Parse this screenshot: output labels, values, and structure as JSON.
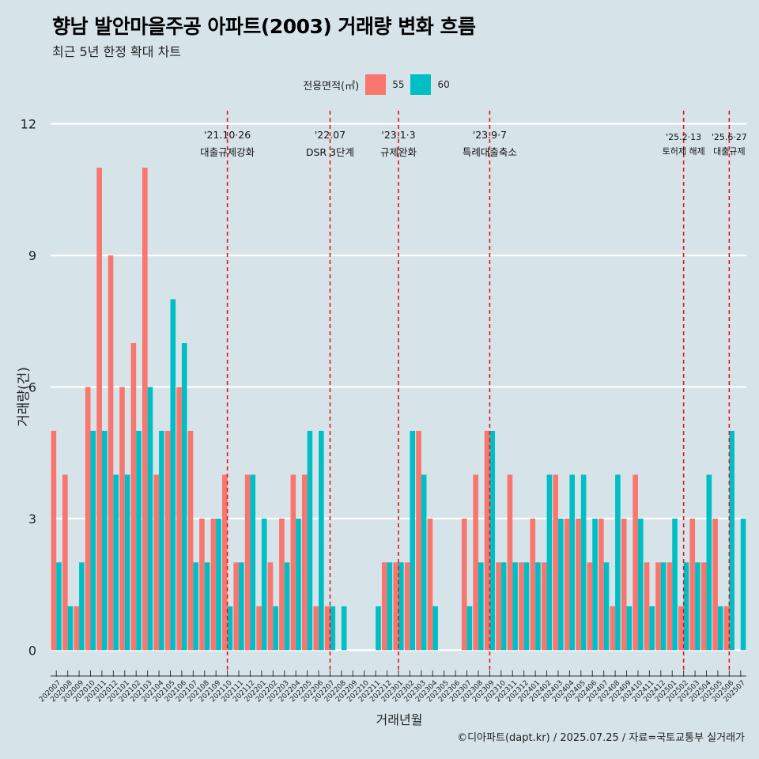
{
  "title": "향남 발안마을주공 아파트(2003) 거래량 변화 흐름",
  "subtitle": "최근 5년 한정 확대 차트",
  "caption": "©디아파트(dapt.kr) / 2025.07.25 / 자료=국토교통부 실거래가",
  "colors": {
    "background": "#d6e4ea",
    "series_55": "#f8766d",
    "series_60": "#00bfc4",
    "event_line": "#e8141c",
    "grid": "#ffffff"
  },
  "chart_data": {
    "type": "bar",
    "xlabel": "거래년월",
    "ylabel": "거래량(건)",
    "ylim": [
      -0.5,
      12.3
    ],
    "yticks": [
      0,
      3,
      6,
      9,
      12
    ],
    "grid": "horizontal",
    "legend_position": "top",
    "legend_title": "전용면적(㎡)",
    "categories": [
      "202007",
      "202008",
      "202009",
      "202010",
      "202011",
      "202012",
      "202101",
      "202102",
      "202103",
      "202104",
      "202105",
      "202106",
      "202107",
      "202108",
      "202109",
      "202110",
      "202111",
      "202112",
      "202201",
      "202202",
      "202203",
      "202204",
      "202205",
      "202206",
      "202207",
      "202208",
      "202209",
      "202210",
      "202211",
      "202212",
      "202301",
      "202302",
      "202303",
      "202304",
      "202305",
      "202306",
      "202307",
      "202308",
      "202309",
      "202310",
      "202311",
      "202312",
      "202401",
      "202402",
      "202403",
      "202404",
      "202405",
      "202406",
      "202407",
      "202408",
      "202409",
      "202410",
      "202411",
      "202412",
      "202501",
      "202502",
      "202503",
      "202504",
      "202505",
      "202506",
      "202507"
    ],
    "series": [
      {
        "name": "55",
        "values": [
          5,
          4,
          1,
          6,
          11,
          9,
          6,
          7,
          11,
          4,
          5,
          6,
          5,
          3,
          3,
          4,
          2,
          4,
          1,
          2,
          3,
          4,
          4,
          1,
          1,
          0,
          0,
          0,
          0,
          2,
          2,
          2,
          5,
          3,
          0,
          0,
          3,
          4,
          5,
          2,
          4,
          2,
          3,
          2,
          4,
          3,
          3,
          2,
          3,
          1,
          3,
          4,
          2,
          2,
          2,
          1,
          3,
          2,
          3,
          1,
          0
        ]
      },
      {
        "name": "60",
        "values": [
          2,
          1,
          2,
          5,
          5,
          4,
          4,
          5,
          6,
          5,
          8,
          7,
          2,
          2,
          3,
          1,
          2,
          4,
          3,
          1,
          2,
          3,
          5,
          5,
          1,
          1,
          0,
          0,
          1,
          2,
          2,
          5,
          4,
          1,
          0,
          0,
          1,
          2,
          5,
          2,
          2,
          2,
          2,
          4,
          3,
          4,
          4,
          3,
          2,
          4,
          1,
          3,
          1,
          2,
          3,
          2,
          2,
          4,
          1,
          5,
          3
        ]
      }
    ],
    "annotations": [
      {
        "date": "'21.10·26",
        "label": "대출규제강화",
        "category_index": 15.5
      },
      {
        "date": "'22.07",
        "label": "DSR 3단계",
        "category_index": 24.5
      },
      {
        "date": "'23.1·3",
        "label": "규제완화",
        "category_index": 30.5
      },
      {
        "date": "'23.9·7",
        "label": "특례대출축소",
        "category_index": 38.5
      },
      {
        "date": "'25.2·13",
        "label": "토허제 해제",
        "category_index": 55.5
      },
      {
        "date": "'25.6·27",
        "label": "대출규제",
        "category_index": 59.5
      }
    ]
  }
}
